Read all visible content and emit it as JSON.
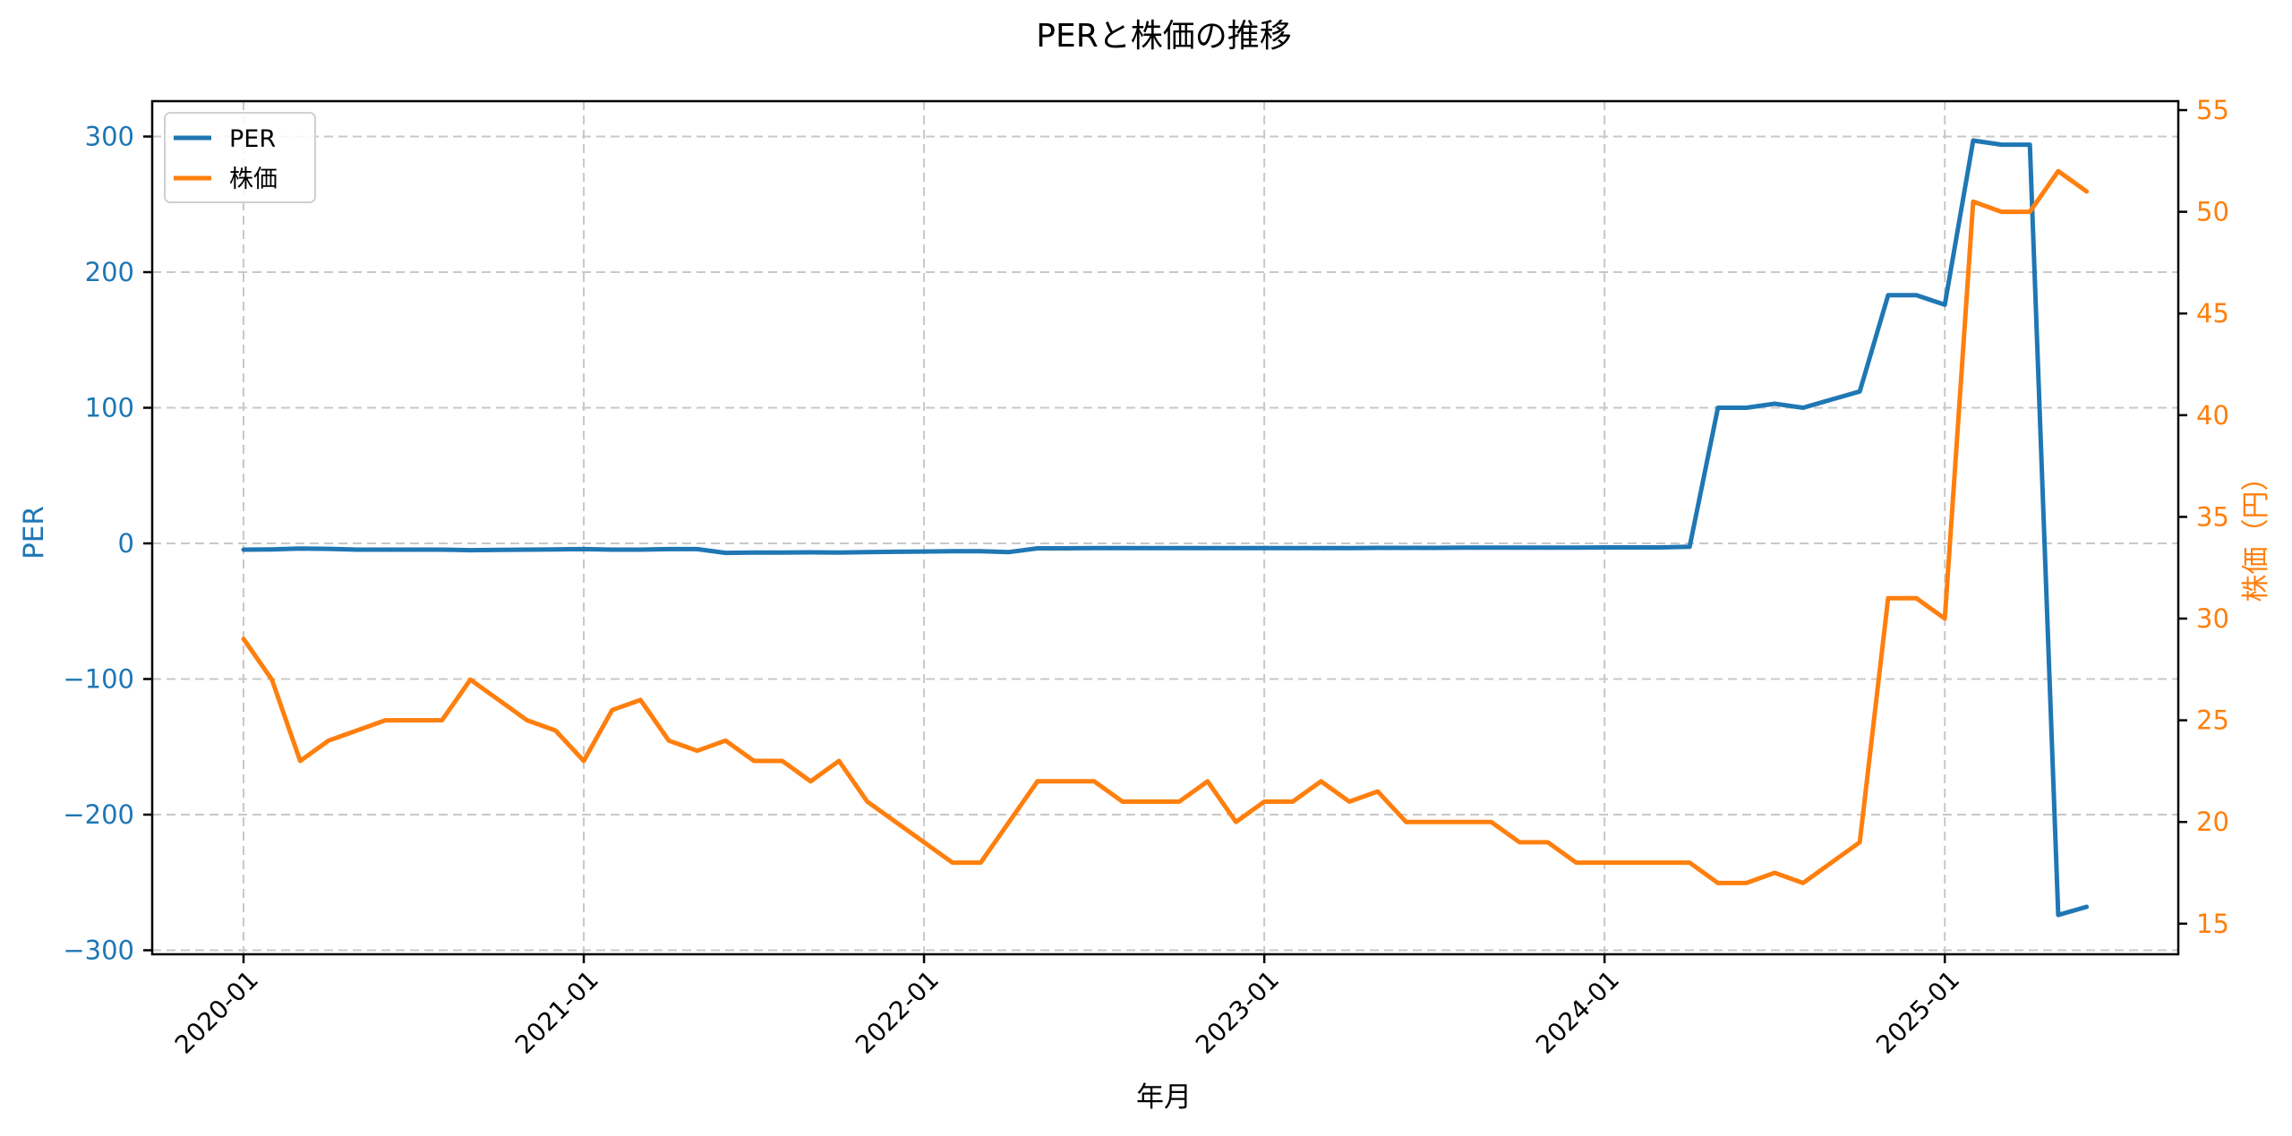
{
  "chart_data": {
    "type": "line",
    "title": "PERと株価の推移",
    "xlabel": "年月",
    "ylabel": "PER",
    "ylabel_right": "株価（円）",
    "ylim": [
      -303,
      325
    ],
    "ylim_right": [
      13.8,
      55.4
    ],
    "yticks": [
      -300,
      -200,
      -100,
      0,
      100,
      200,
      300
    ],
    "yticks_right": [
      15,
      20,
      25,
      30,
      35,
      40,
      45,
      50,
      55
    ],
    "xtick_labels": [
      "2020-01",
      "2021-01",
      "2022-01",
      "2023-01",
      "2024-01",
      "2025-01"
    ],
    "grid": true,
    "legend_position": "upper left",
    "x": [
      "2020-01",
      "2020-02",
      "2020-03",
      "2020-04",
      "2020-05",
      "2020-06",
      "2020-07",
      "2020-08",
      "2020-09",
      "2020-10",
      "2020-11",
      "2020-12",
      "2021-01",
      "2021-02",
      "2021-03",
      "2021-04",
      "2021-05",
      "2021-06",
      "2021-07",
      "2021-08",
      "2021-09",
      "2021-10",
      "2021-11",
      "2021-12",
      "2022-01",
      "2022-02",
      "2022-03",
      "2022-04",
      "2022-05",
      "2022-06",
      "2022-07",
      "2022-08",
      "2022-09",
      "2022-10",
      "2022-11",
      "2022-12",
      "2023-01",
      "2023-02",
      "2023-03",
      "2023-04",
      "2023-05",
      "2023-06",
      "2023-07",
      "2023-08",
      "2023-09",
      "2023-10",
      "2023-11",
      "2023-12",
      "2024-01",
      "2024-02",
      "2024-03",
      "2024-04",
      "2024-05",
      "2024-06",
      "2024-07",
      "2024-08",
      "2024-09",
      "2024-10",
      "2024-11",
      "2024-12",
      "2025-01",
      "2025-02",
      "2025-03",
      "2025-04",
      "2025-05",
      "2025-06"
    ],
    "series": [
      {
        "name": "PER",
        "axis": "left",
        "color": "#1f77b4",
        "values": [
          -4.6,
          -4.4,
          -3.8,
          -4.0,
          -4.6,
          -4.6,
          -4.6,
          -4.6,
          -5.0,
          -4.8,
          -4.6,
          -4.4,
          -4.2,
          -4.6,
          -4.6,
          -4.2,
          -4.2,
          -7.0,
          -6.8,
          -6.8,
          -6.6,
          -6.8,
          -6.4,
          -6.2,
          -6.0,
          -5.8,
          -5.8,
          -6.4,
          -3.6,
          -3.6,
          -3.5,
          -3.5,
          -3.5,
          -3.5,
          -3.4,
          -3.4,
          -3.4,
          -3.4,
          -3.4,
          -3.4,
          -3.3,
          -3.3,
          -3.3,
          -3.2,
          -3.2,
          -3.2,
          -3.1,
          -3.1,
          -3.0,
          -3.0,
          -3.0,
          -2.5,
          100,
          100,
          103,
          100,
          106,
          112,
          183,
          183,
          176,
          297,
          294,
          294,
          -274,
          -268
        ]
      },
      {
        "name": "株価",
        "axis": "right",
        "color": "#ff7f0e",
        "values": [
          29,
          27,
          23,
          24,
          24.5,
          25,
          25,
          25,
          27,
          26,
          25,
          24.5,
          23,
          25.5,
          26,
          24,
          23.5,
          24,
          23,
          23,
          22,
          23,
          21,
          20,
          19,
          18,
          18,
          20,
          22,
          22,
          22,
          21,
          21,
          21,
          22,
          20,
          21,
          21,
          22,
          21,
          21.5,
          20,
          20,
          20,
          20,
          19,
          19,
          18,
          18,
          18,
          18,
          18,
          17,
          17,
          17.5,
          17,
          18,
          19,
          31,
          31,
          30,
          50.5,
          50,
          50,
          52,
          51
        ]
      }
    ]
  },
  "legend": {
    "items": [
      {
        "label": "PER",
        "color": "#1f77b4"
      },
      {
        "label": "株価",
        "color": "#ff7f0e"
      }
    ]
  }
}
